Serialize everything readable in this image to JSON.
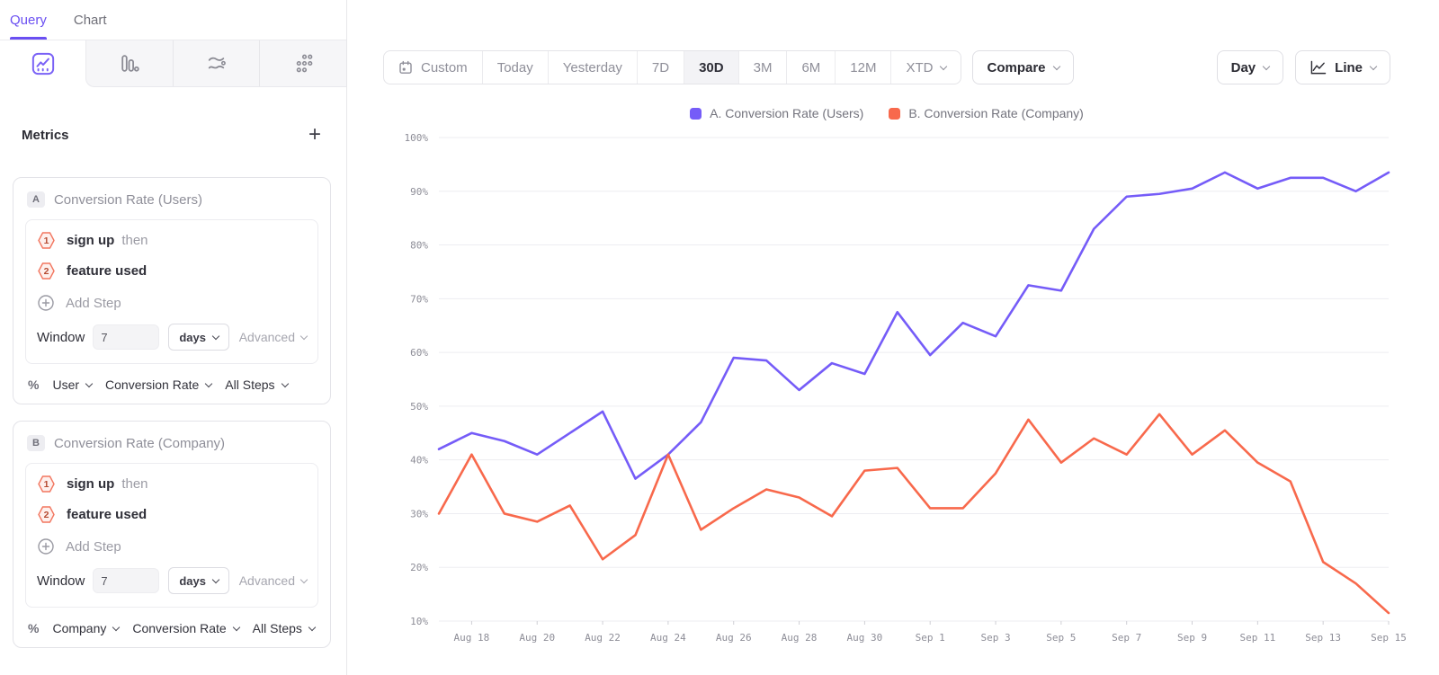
{
  "sidebar": {
    "tabs": [
      {
        "label": "Query"
      },
      {
        "label": "Chart"
      }
    ],
    "view_tabs": [
      "line-chart-view",
      "bar-chart-view",
      "flow-view",
      "breakdown-view"
    ],
    "metrics_header": {
      "title": "Metrics",
      "add_label": "+"
    },
    "cards": [
      {
        "id": "A",
        "title": "Conversion Rate (Users)",
        "steps": [
          {
            "num": "1",
            "event": "sign up",
            "suffix": "then"
          },
          {
            "num": "2",
            "event": "feature used",
            "suffix": ""
          }
        ],
        "add_step_label": "Add Step",
        "window": {
          "label": "Window",
          "value": "7",
          "unit": "days",
          "advanced_label": "Advanced"
        },
        "measure": {
          "symbol": "%",
          "entity": "User",
          "metric": "Conversion Rate",
          "scope": "All Steps"
        }
      },
      {
        "id": "B",
        "title": "Conversion Rate (Company)",
        "steps": [
          {
            "num": "1",
            "event": "sign up",
            "suffix": "then"
          },
          {
            "num": "2",
            "event": "feature used",
            "suffix": ""
          }
        ],
        "add_step_label": "Add Step",
        "window": {
          "label": "Window",
          "value": "7",
          "unit": "days",
          "advanced_label": "Advanced"
        },
        "measure": {
          "symbol": "%",
          "entity": "Company",
          "metric": "Conversion Rate",
          "scope": "All Steps"
        }
      }
    ]
  },
  "toolbar": {
    "ranges": [
      "Custom",
      "Today",
      "Yesterday",
      "7D",
      "30D",
      "3M",
      "6M",
      "12M",
      "XTD"
    ],
    "active_range": "30D",
    "compare_label": "Compare",
    "interval_label": "Day",
    "chart_type_label": "Line"
  },
  "legend": [
    {
      "label": "A. Conversion Rate (Users)",
      "color": "#755cf8"
    },
    {
      "label": "B. Conversion Rate (Company)",
      "color": "#f8694c"
    }
  ],
  "chart_data": {
    "type": "line",
    "x": [
      "Aug 17",
      "Aug 18",
      "Aug 19",
      "Aug 20",
      "Aug 21",
      "Aug 22",
      "Aug 23",
      "Aug 24",
      "Aug 25",
      "Aug 26",
      "Aug 27",
      "Aug 28",
      "Aug 29",
      "Aug 30",
      "Aug 31",
      "Sep 1",
      "Sep 2",
      "Sep 3",
      "Sep 4",
      "Sep 5",
      "Sep 6",
      "Sep 7",
      "Sep 8",
      "Sep 9",
      "Sep 10",
      "Sep 11",
      "Sep 12",
      "Sep 13",
      "Sep 14",
      "Sep 15"
    ],
    "x_tick_every": 2,
    "series": [
      {
        "name": "A. Conversion Rate (Users)",
        "color": "#755cf8",
        "values": [
          42,
          45,
          43.5,
          41,
          45,
          49,
          36.5,
          41,
          47,
          59,
          58.5,
          53,
          58,
          56,
          67.5,
          59.5,
          65.5,
          63,
          72.5,
          71.5,
          83,
          89,
          89.5,
          90.5,
          93.5,
          90.5,
          92.5,
          92.5,
          90,
          93.5
        ]
      },
      {
        "name": "B. Conversion Rate (Company)",
        "color": "#f8694c",
        "values": [
          30,
          41,
          30,
          28.5,
          31.5,
          21.5,
          26,
          41,
          27,
          31,
          34.5,
          33,
          29.5,
          38,
          38.5,
          31,
          31,
          37.5,
          47.5,
          39.5,
          44,
          41,
          48.5,
          41,
          45.5,
          39.5,
          36,
          21,
          17,
          11.5
        ]
      }
    ],
    "title": "",
    "xlabel": "",
    "ylabel": "",
    "yticks": [
      10,
      20,
      30,
      40,
      50,
      60,
      70,
      80,
      90,
      100
    ],
    "ylim": [
      10,
      100
    ],
    "y_format": "percent",
    "grid": "horizontal",
    "legend_position": "top-center"
  }
}
